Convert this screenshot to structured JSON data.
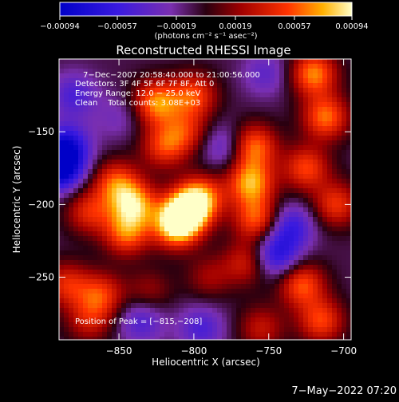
{
  "chart_data": {
    "type": "heatmap",
    "title": "Reconstructed RHESSI Image",
    "xlabel": "Heliocentric X (arcsec)",
    "ylabel": "Heliocentric Y (arcsec)",
    "xlim": [
      -890,
      -695
    ],
    "ylim": [
      -293,
      -100
    ],
    "xticks": [
      {
        "value": -850,
        "label": "−850"
      },
      {
        "value": -800,
        "label": "−800"
      },
      {
        "value": -750,
        "label": "−750"
      },
      {
        "value": -700,
        "label": "−700"
      }
    ],
    "yticks": [
      {
        "value": -150,
        "label": "−150"
      },
      {
        "value": -200,
        "label": "−200"
      },
      {
        "value": -250,
        "label": "−250"
      }
    ],
    "colorbar": {
      "range": [
        -0.00094,
        0.00094
      ],
      "ticks": [
        {
          "value": -0.00094,
          "label": "−0.00094"
        },
        {
          "value": -0.00057,
          "label": "−0.00057"
        },
        {
          "value": -0.00019,
          "label": "−0.00019"
        },
        {
          "value": 0.00019,
          "label": "0.00019"
        },
        {
          "value": 0.00057,
          "label": "0.00057"
        },
        {
          "value": 0.00094,
          "label": "0.00094"
        }
      ],
      "unit_label": "(photons cm⁻² s⁻¹ asec⁻²)"
    },
    "annotations": [
      "7−Dec−2007 20:58:40.000 to 21:00:56.000",
      "Detectors: 3F 4F 5F 6F 7F 8F, Att 0",
      "Energy Range: 12.0 − 25.0 keV",
      "Clean    Total counts: 3.08E+03"
    ],
    "peak": {
      "x": -815,
      "y": -208,
      "label": "Position of Peak = [−815,−208]"
    },
    "blobs": [
      {
        "x": -805,
        "y": -205,
        "value": 0.00094
      },
      {
        "x": -812,
        "y": -215,
        "value": 0.00085
      },
      {
        "x": -795,
        "y": -195,
        "value": 0.0007
      },
      {
        "x": -840,
        "y": -200,
        "value": 0.0008
      },
      {
        "x": -845,
        "y": -220,
        "value": 0.00065
      },
      {
        "x": -852,
        "y": -185,
        "value": 0.0006
      },
      {
        "x": -870,
        "y": -205,
        "value": 0.0005
      },
      {
        "x": -885,
        "y": -255,
        "value": 0.0005
      },
      {
        "x": -862,
        "y": -262,
        "value": 0.00055
      },
      {
        "x": -870,
        "y": -280,
        "value": 0.0004
      },
      {
        "x": -820,
        "y": -160,
        "value": 0.00055
      },
      {
        "x": -825,
        "y": -130,
        "value": 0.00075
      },
      {
        "x": -800,
        "y": -125,
        "value": 0.0006
      },
      {
        "x": -805,
        "y": -150,
        "value": 0.00045
      },
      {
        "x": -760,
        "y": -160,
        "value": 0.0007
      },
      {
        "x": -762,
        "y": -185,
        "value": 0.0008
      },
      {
        "x": -758,
        "y": -210,
        "value": 0.00065
      },
      {
        "x": -765,
        "y": -240,
        "value": 0.00045
      },
      {
        "x": -720,
        "y": -110,
        "value": 0.00075
      },
      {
        "x": -712,
        "y": -140,
        "value": 0.0007
      },
      {
        "x": -725,
        "y": -175,
        "value": 0.0006
      },
      {
        "x": -705,
        "y": -200,
        "value": 0.00055
      },
      {
        "x": -728,
        "y": -255,
        "value": 0.00065
      },
      {
        "x": -715,
        "y": -280,
        "value": 0.0006
      },
      {
        "x": -755,
        "y": -285,
        "value": 0.0004
      },
      {
        "x": -790,
        "y": -250,
        "value": 0.0003
      },
      {
        "x": -830,
        "y": -260,
        "value": 0.0003
      },
      {
        "x": -880,
        "y": -125,
        "value": -0.0004
      },
      {
        "x": -885,
        "y": -160,
        "value": -0.00065
      },
      {
        "x": -890,
        "y": -175,
        "value": -0.00094
      },
      {
        "x": -835,
        "y": -280,
        "value": -0.0004
      },
      {
        "x": -795,
        "y": -285,
        "value": -0.0004
      },
      {
        "x": -735,
        "y": -215,
        "value": -0.0005
      },
      {
        "x": -745,
        "y": -235,
        "value": -0.0006
      },
      {
        "x": -752,
        "y": -110,
        "value": -0.0003
      },
      {
        "x": -850,
        "y": -140,
        "value": -0.0002
      },
      {
        "x": -780,
        "y": -160,
        "value": -0.00035
      }
    ]
  },
  "footer": {
    "date": "7−May−2022 07:20"
  }
}
